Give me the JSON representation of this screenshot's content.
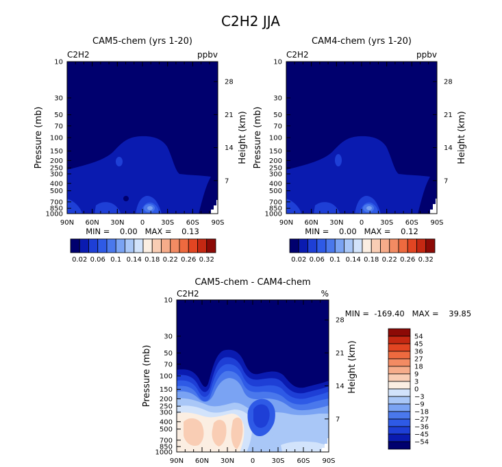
{
  "figure_title": "C2H2 JJA",
  "colors": {
    "lo": "#00006e",
    "l1": "#0a1bb0",
    "l2": "#1e3fd6",
    "l3": "#2e5ae6",
    "l4": "#4a78ec",
    "l5": "#7aa3f3",
    "l6": "#a9c7f7",
    "l7": "#d2e3fb",
    "w0": "#fbeee2",
    "w1": "#f9cdb4",
    "w2": "#f6ac8a",
    "w3": "#f38b63",
    "w4": "#ee6a3f",
    "w5": "#e24522",
    "w6": "#c52812",
    "w7": "#8c0a06",
    "white": "#ffffff"
  },
  "chart_data": [
    {
      "type": "heatmap",
      "id": "panel1",
      "title": "CAM5-chem (yrs 1-20)",
      "variable_label": "C2H2",
      "units_label": "ppbv",
      "xlabel": "",
      "ylabel": "Pressure (mb)",
      "y2label": "Height (km)",
      "x_ticks": [
        "90N",
        "60N",
        "30N",
        "0",
        "30S",
        "60S",
        "90S"
      ],
      "y_ticks": [
        "10",
        "30",
        "50",
        "70",
        "100",
        "150",
        "200",
        "250",
        "300",
        "400",
        "500",
        "700",
        "850",
        "1000"
      ],
      "y_tick_values": [
        10,
        30,
        50,
        70,
        100,
        150,
        200,
        250,
        300,
        400,
        500,
        700,
        850,
        1000
      ],
      "y2_ticks": [
        "28",
        "21",
        "14",
        "7"
      ],
      "y2_tick_values": [
        28,
        21,
        14,
        7
      ],
      "ylim": [
        1000,
        10
      ],
      "stats_text": "MIN =    0.00   MAX =    0.13",
      "colorbar_labels": [
        "0.02",
        "0.06",
        "0.1",
        "0.14",
        "0.18",
        "0.22",
        "0.26",
        "0.32"
      ],
      "contour_levels": [
        0.02,
        0.04,
        0.06,
        0.08,
        0.1,
        0.12,
        0.14,
        0.16,
        0.18,
        0.2,
        0.22,
        0.24,
        0.26,
        0.28,
        0.32
      ],
      "hot_spot_lat": -10,
      "min": 0.0,
      "max": 0.13
    },
    {
      "type": "heatmap",
      "id": "panel2",
      "title": "CAM4-chem (yrs 1-20)",
      "variable_label": "C2H2",
      "units_label": "ppbv",
      "xlabel": "",
      "ylabel": "Pressure (mb)",
      "y2label": "Height (km)",
      "x_ticks": [
        "90N",
        "60N",
        "30N",
        "0",
        "30S",
        "60S",
        "90S"
      ],
      "y_ticks": [
        "10",
        "30",
        "50",
        "70",
        "100",
        "150",
        "200",
        "250",
        "300",
        "400",
        "500",
        "700",
        "850",
        "1000"
      ],
      "y_tick_values": [
        10,
        30,
        50,
        70,
        100,
        150,
        200,
        250,
        300,
        400,
        500,
        700,
        850,
        1000
      ],
      "y2_ticks": [
        "28",
        "21",
        "14",
        "7"
      ],
      "y2_tick_values": [
        28,
        21,
        14,
        7
      ],
      "ylim": [
        1000,
        10
      ],
      "stats_text": "MIN =    0.00   MAX =    0.12",
      "colorbar_labels": [
        "0.02",
        "0.06",
        "0.1",
        "0.14",
        "0.18",
        "0.22",
        "0.26",
        "0.32"
      ],
      "contour_levels": [
        0.02,
        0.04,
        0.06,
        0.08,
        0.1,
        0.12,
        0.14,
        0.16,
        0.18,
        0.2,
        0.22,
        0.24,
        0.26,
        0.28,
        0.32
      ],
      "hot_spot_lat": -10,
      "min": 0.0,
      "max": 0.12
    },
    {
      "type": "heatmap",
      "id": "panel3",
      "title": "CAM5-chem - CAM4-chem",
      "variable_label": "C2H2",
      "units_label": "%",
      "xlabel": "",
      "ylabel": "Pressure (mb)",
      "y2label": "Height (km)",
      "x_ticks": [
        "90N",
        "60N",
        "30N",
        "0",
        "30S",
        "60S",
        "90S"
      ],
      "y_ticks": [
        "10",
        "30",
        "50",
        "70",
        "100",
        "150",
        "200",
        "250",
        "300",
        "400",
        "500",
        "700",
        "850",
        "1000"
      ],
      "y_tick_values": [
        10,
        30,
        50,
        70,
        100,
        150,
        200,
        250,
        300,
        400,
        500,
        700,
        850,
        1000
      ],
      "y2_ticks": [
        "28",
        "21",
        "14",
        "7"
      ],
      "y2_tick_values": [
        28,
        21,
        14,
        7
      ],
      "ylim": [
        1000,
        10
      ],
      "stats_text": "MIN =  -169.40   MAX =    39.85",
      "colorbar_labels": [
        "54",
        "45",
        "36",
        "27",
        "18",
        "9",
        "3",
        "0",
        "−3",
        "−9",
        "−18",
        "−27",
        "−36",
        "−45",
        "−54"
      ],
      "contour_levels": [
        -54,
        -45,
        -36,
        -27,
        -18,
        -9,
        -3,
        0,
        3,
        9,
        18,
        27,
        36,
        45,
        54
      ],
      "min": -169.4,
      "max": 39.85
    }
  ]
}
